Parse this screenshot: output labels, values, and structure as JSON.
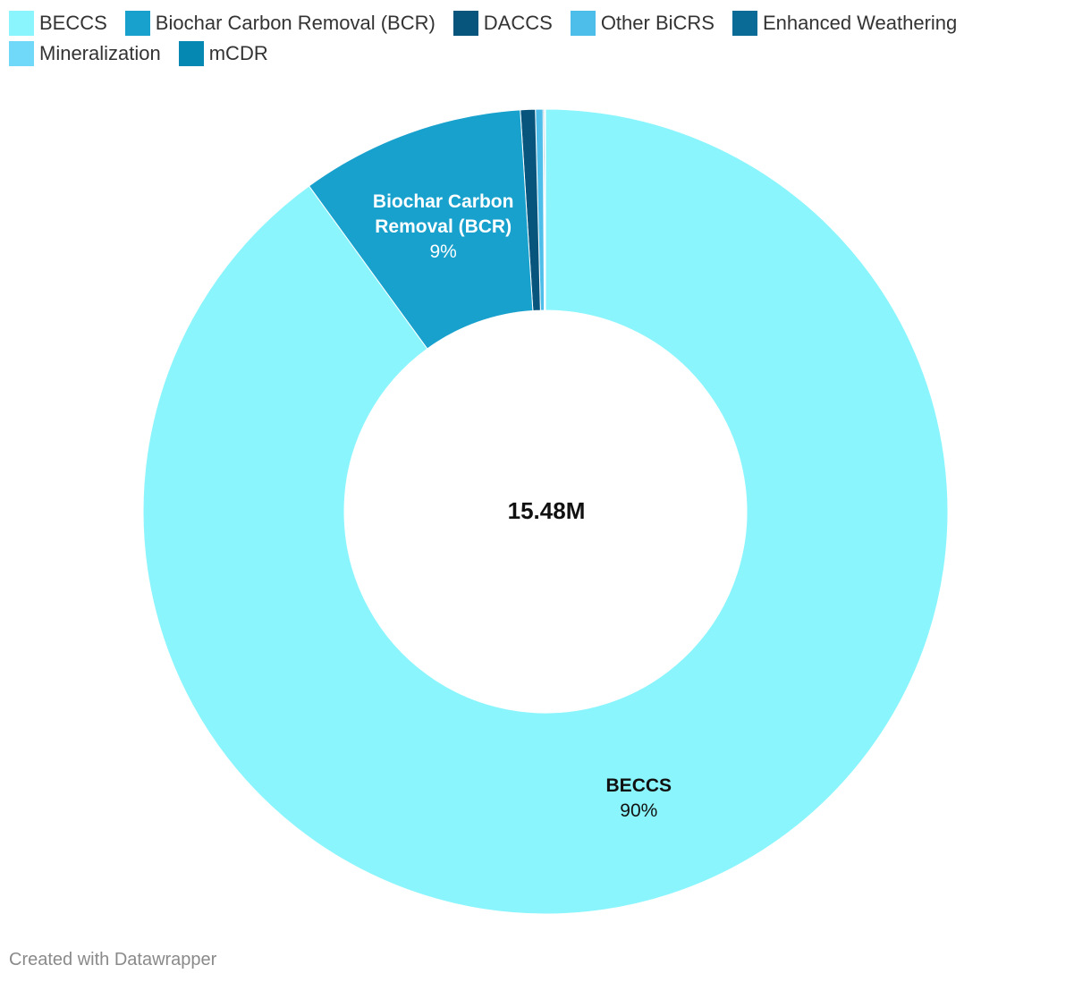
{
  "chart_data": {
    "type": "donut",
    "categories": [
      "BECCS",
      "Biochar Carbon Removal (BCR)",
      "DACCS",
      "Other BiCRS",
      "Enhanced Weathering",
      "Mineralization",
      "mCDR"
    ],
    "values": [
      90,
      9,
      0.6,
      0.3,
      0.05,
      0.03,
      0.02
    ],
    "value_labels": [
      "90%",
      "9%",
      null,
      null,
      null,
      null,
      null
    ],
    "colors": [
      "#8af5fd",
      "#18a1cd",
      "#07547c",
      "#4dbde9",
      "#0a6b97",
      "#70d9f9",
      "#0589b2"
    ],
    "center_label": "15.48M",
    "footer": "Created with Datawrapper"
  }
}
